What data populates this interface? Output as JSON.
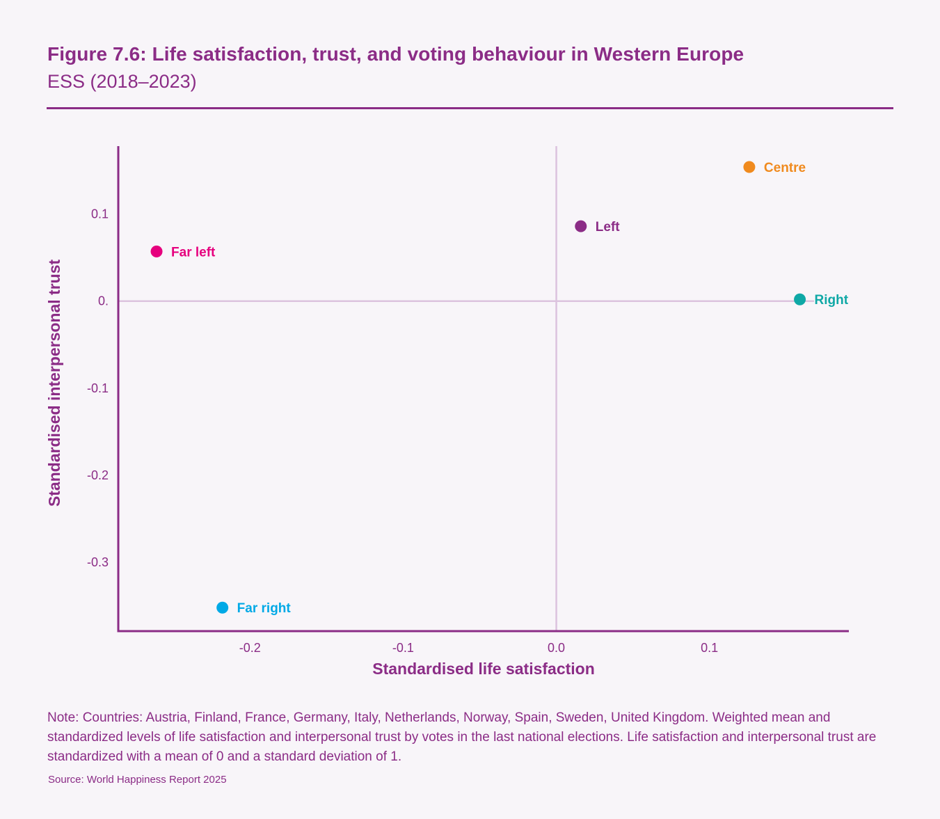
{
  "header": {
    "title": "Figure 7.6: Life satisfaction, trust, and voting behaviour in Western Europe",
    "subtitle": "ESS (2018–2023)"
  },
  "colors": {
    "primary": "#8b2c86",
    "reference_line": "#dcc3de",
    "background": "#f8f5f9"
  },
  "chart_data": {
    "type": "scatter",
    "title": "Figure 7.6: Life satisfaction, trust, and voting behaviour in Western Europe",
    "subtitle": "ESS (2018–2023)",
    "xlabel": "Standardised life satisfaction",
    "ylabel": "Standardised interpersonal trust",
    "xlim": [
      -0.286,
      0.191
    ],
    "ylim": [
      -0.379,
      0.178
    ],
    "x_ticks": [
      {
        "value": -0.2,
        "label": "-0.2"
      },
      {
        "value": -0.1,
        "label": "-0.1"
      },
      {
        "value": 0.0,
        "label": "0.0"
      },
      {
        "value": 0.1,
        "label": "0.1"
      }
    ],
    "y_ticks": [
      {
        "value": 0.1,
        "label": "0.1"
      },
      {
        "value": 0.0,
        "label": "0."
      },
      {
        "value": -0.1,
        "label": "-0.1"
      },
      {
        "value": -0.2,
        "label": "-0.2"
      },
      {
        "value": -0.3,
        "label": "-0.3"
      }
    ],
    "grid": false,
    "reference_lines": {
      "x": 0,
      "y": 0
    },
    "legend": "none (direct labels)",
    "points": [
      {
        "name": "Far left",
        "x": -0.261,
        "y": 0.057,
        "color": "#e6007e"
      },
      {
        "name": "Far right",
        "x": -0.218,
        "y": -0.352,
        "color": "#00a9e6"
      },
      {
        "name": "Left",
        "x": 0.016,
        "y": 0.086,
        "color": "#8b2c86"
      },
      {
        "name": "Centre",
        "x": 0.126,
        "y": 0.154,
        "color": "#f08a1e"
      },
      {
        "name": "Right",
        "x": 0.159,
        "y": 0.002,
        "color": "#0fa8a6"
      }
    ]
  },
  "footer": {
    "note": "Note: Countries: Austria, Finland, France, Germany, Italy, Netherlands, Norway, Spain, Sweden, United Kingdom. Weighted mean and standardized levels of life satisfaction and interpersonal trust by votes in the last national elections. Life satisfaction and interpersonal trust are standardized with a mean of 0 and a standard deviation of 1.",
    "source": "Source: World Happiness Report 2025"
  }
}
